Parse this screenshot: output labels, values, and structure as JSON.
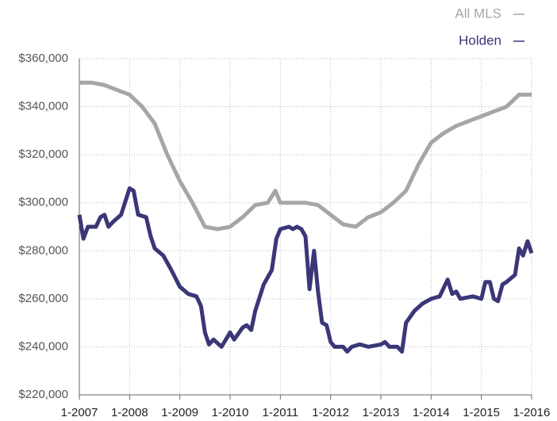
{
  "chart_data": {
    "type": "line",
    "legend": "top-right",
    "grid": true,
    "xlim": [
      2007,
      2016
    ],
    "xticks": [
      {
        "value": 2007,
        "label": "1-2007"
      },
      {
        "value": 2008,
        "label": "1-2008"
      },
      {
        "value": 2009,
        "label": "1-2009"
      },
      {
        "value": 2010,
        "label": "1-2010"
      },
      {
        "value": 2011,
        "label": "1-2011"
      },
      {
        "value": 2012,
        "label": "1-2012"
      },
      {
        "value": 2013,
        "label": "1-2013"
      },
      {
        "value": 2014,
        "label": "1-2014"
      },
      {
        "value": 2015,
        "label": "1-2015"
      },
      {
        "value": 2016,
        "label": "1-2016"
      }
    ],
    "ylim": [
      220000,
      360000
    ],
    "yticks": [
      {
        "value": 220000,
        "label": "$220,000"
      },
      {
        "value": 240000,
        "label": "$240,000"
      },
      {
        "value": 260000,
        "label": "$260,000"
      },
      {
        "value": 280000,
        "label": "$280,000"
      },
      {
        "value": 300000,
        "label": "$300,000"
      },
      {
        "value": 320000,
        "label": "$320,000"
      },
      {
        "value": 340000,
        "label": "$340,000"
      },
      {
        "value": 360000,
        "label": "$360,000"
      }
    ],
    "series": [
      {
        "name": "All MLS",
        "color": "#a6a6a6",
        "x": [
          2007,
          2007.25,
          2007.5,
          2007.75,
          2008,
          2008.25,
          2008.5,
          2008.75,
          2009,
          2009.25,
          2009.5,
          2009.75,
          2010,
          2010.25,
          2010.5,
          2010.75,
          2010.9,
          2011,
          2011.25,
          2011.5,
          2011.75,
          2012,
          2012.25,
          2012.5,
          2012.75,
          2013,
          2013.25,
          2013.5,
          2013.75,
          2014,
          2014.25,
          2014.5,
          2014.75,
          2015,
          2015.25,
          2015.5,
          2015.75,
          2016
        ],
        "values": [
          350000,
          350000,
          349000,
          347000,
          345000,
          340000,
          333000,
          320000,
          309000,
          300000,
          290000,
          289000,
          290000,
          294000,
          299000,
          300000,
          305000,
          300000,
          300000,
          300000,
          299000,
          295000,
          291000,
          290000,
          294000,
          296000,
          300000,
          305000,
          316000,
          325000,
          329000,
          332000,
          334000,
          336000,
          338000,
          340000,
          345000,
          345000
        ]
      },
      {
        "name": "Holden",
        "color": "#3a3777",
        "x": [
          2007,
          2007.08,
          2007.17,
          2007.33,
          2007.42,
          2007.5,
          2007.58,
          2007.67,
          2007.83,
          2008,
          2008.08,
          2008.17,
          2008.33,
          2008.42,
          2008.5,
          2008.67,
          2008.83,
          2009,
          2009.17,
          2009.33,
          2009.42,
          2009.5,
          2009.58,
          2009.67,
          2009.83,
          2010,
          2010.08,
          2010.25,
          2010.33,
          2010.42,
          2010.5,
          2010.67,
          2010.83,
          2010.92,
          2011,
          2011.17,
          2011.25,
          2011.33,
          2011.42,
          2011.5,
          2011.58,
          2011.67,
          2011.75,
          2011.83,
          2011.92,
          2012,
          2012.08,
          2012.25,
          2012.33,
          2012.42,
          2012.58,
          2012.75,
          2013,
          2013.08,
          2013.17,
          2013.33,
          2013.42,
          2013.5,
          2013.67,
          2013.83,
          2014,
          2014.17,
          2014.33,
          2014.42,
          2014.5,
          2014.58,
          2014.83,
          2015,
          2015.08,
          2015.17,
          2015.25,
          2015.33,
          2015.42,
          2015.5,
          2015.67,
          2015.75,
          2015.83,
          2015.92,
          2016
        ],
        "values": [
          295000,
          285000,
          290000,
          290000,
          294000,
          295000,
          290000,
          292000,
          295000,
          306000,
          305000,
          295000,
          294000,
          286000,
          281000,
          278000,
          272000,
          265000,
          262000,
          261000,
          257000,
          246000,
          241000,
          243000,
          240000,
          246000,
          243000,
          248000,
          249000,
          247000,
          255000,
          266000,
          272000,
          285000,
          289000,
          290000,
          289000,
          290000,
          289000,
          286000,
          264000,
          280000,
          263000,
          250000,
          249000,
          242000,
          240000,
          240000,
          238000,
          240000,
          241000,
          240000,
          241000,
          242000,
          240000,
          240000,
          238000,
          250000,
          255000,
          258000,
          260000,
          261000,
          268000,
          262000,
          263000,
          260000,
          261000,
          260000,
          267000,
          267000,
          260000,
          259000,
          266000,
          267000,
          270000,
          281000,
          278000,
          284000,
          279000
        ]
      }
    ]
  }
}
